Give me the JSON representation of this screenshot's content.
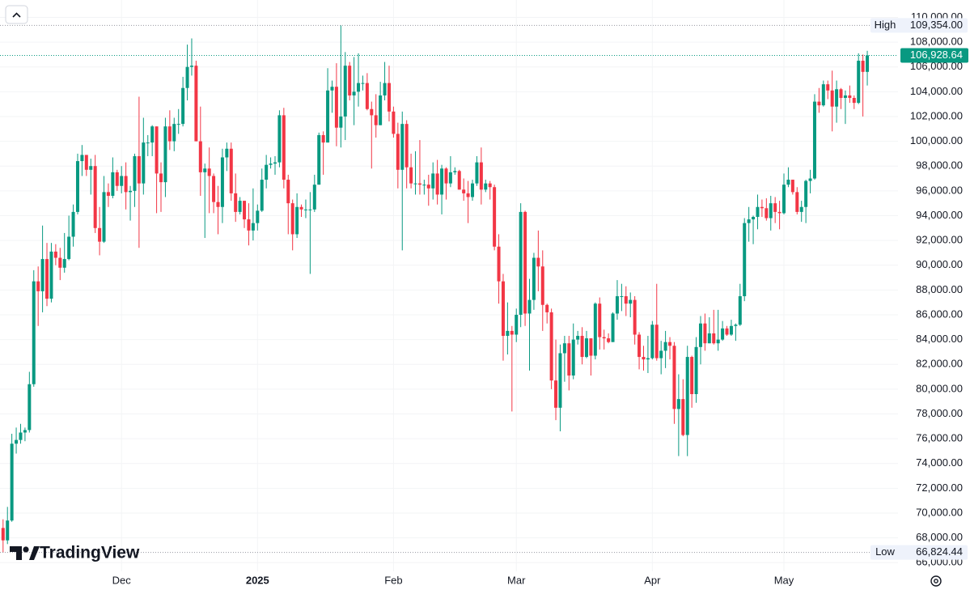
{
  "chart_data": {
    "type": "candlestick",
    "up_color": "#089981",
    "down_color": "#f23645",
    "xlim": [
      -0.7,
      204
    ],
    "ylim": [
      65300,
      111400
    ],
    "grid": true,
    "xticks": [
      {
        "value": 27,
        "label": "Dec"
      },
      {
        "value": 58,
        "label": "2025"
      },
      {
        "value": 89,
        "label": "Feb"
      },
      {
        "value": 117,
        "label": "Mar"
      },
      {
        "value": 148,
        "label": "Apr"
      },
      {
        "value": 178,
        "label": "May"
      }
    ],
    "yticks": [
      {
        "value": 110000,
        "label": "110,000.00"
      },
      {
        "value": 108000,
        "label": "108,000.00"
      },
      {
        "value": 106000,
        "label": "106,000.00"
      },
      {
        "value": 104000,
        "label": "104,000.00"
      },
      {
        "value": 102000,
        "label": "102,000.00"
      },
      {
        "value": 100000,
        "label": "100,000.00"
      },
      {
        "value": 98000,
        "label": "98,000.00"
      },
      {
        "value": 96000,
        "label": "96,000.00"
      },
      {
        "value": 94000,
        "label": "94,000.00"
      },
      {
        "value": 92000,
        "label": "92,000.00"
      },
      {
        "value": 90000,
        "label": "90,000.00"
      },
      {
        "value": 88000,
        "label": "88,000.00"
      },
      {
        "value": 86000,
        "label": "86,000.00"
      },
      {
        "value": 84000,
        "label": "84,000.00"
      },
      {
        "value": 82000,
        "label": "82,000.00"
      },
      {
        "value": 80000,
        "label": "80,000.00"
      },
      {
        "value": 78000,
        "label": "78,000.00"
      },
      {
        "value": 76000,
        "label": "76,000.00"
      },
      {
        "value": 74000,
        "label": "74,000.00"
      },
      {
        "value": 72000,
        "label": "72,000.00"
      },
      {
        "value": 70000,
        "label": "70,000.00"
      },
      {
        "value": 68000,
        "label": "68,000.00"
      },
      {
        "value": 66000,
        "label": "66,000.00"
      }
    ],
    "high": {
      "label": "High",
      "value": 109354,
      "value_label": "109,354.00"
    },
    "low": {
      "label": "Low",
      "value": 66824.44,
      "value_label": "66,824.44"
    },
    "last": {
      "value": 106928.64,
      "value_label": "106,928.64"
    },
    "watermark": "TradingView",
    "ohlc": [
      [
        68800,
        69500,
        66824.44,
        67800
      ],
      [
        67800,
        70500,
        67500,
        69400
      ],
      [
        69400,
        76400,
        69300,
        75600
      ],
      [
        75600,
        76900,
        74800,
        75900
      ],
      [
        75900,
        77200,
        75600,
        76500
      ],
      [
        76500,
        76900,
        75800,
        76700
      ],
      [
        76700,
        81400,
        76500,
        80400
      ],
      [
        80400,
        89600,
        80200,
        88700
      ],
      [
        88700,
        89900,
        85100,
        87900
      ],
      [
        87900,
        93200,
        86200,
        90500
      ],
      [
        90500,
        91800,
        86700,
        87300
      ],
      [
        87300,
        91800,
        87000,
        91100
      ],
      [
        91100,
        91700,
        90000,
        90600
      ],
      [
        90600,
        91400,
        88800,
        89800
      ],
      [
        89800,
        92600,
        89400,
        90500
      ],
      [
        90500,
        94000,
        90400,
        92300
      ],
      [
        92300,
        94900,
        91500,
        94300
      ],
      [
        94300,
        99000,
        94100,
        98400
      ],
      [
        98400,
        99700,
        97200,
        98900
      ],
      [
        98900,
        98900,
        97200,
        97700
      ],
      [
        97700,
        98600,
        95700,
        98000
      ],
      [
        98000,
        98900,
        92600,
        93000
      ],
      [
        93000,
        94700,
        90800,
        91900
      ],
      [
        91900,
        97200,
        91800,
        95900
      ],
      [
        95900,
        96600,
        94700,
        95600
      ],
      [
        95600,
        98700,
        95400,
        97500
      ],
      [
        97500,
        97700,
        96000,
        96400
      ],
      [
        96400,
        98000,
        95800,
        97200
      ],
      [
        97200,
        98300,
        94500,
        95900
      ],
      [
        95900,
        96400,
        93600,
        96000
      ],
      [
        96000,
        99000,
        94700,
        98800
      ],
      [
        98800,
        103600,
        91400,
        96600
      ],
      [
        96600,
        101900,
        95700,
        99900
      ],
      [
        99900,
        100500,
        98800,
        99900
      ],
      [
        99900,
        101300,
        98800,
        101200
      ],
      [
        101200,
        101200,
        94200,
        97400
      ],
      [
        97400,
        98300,
        94300,
        96700
      ],
      [
        96700,
        101900,
        95500,
        101200
      ],
      [
        101200,
        102500,
        99300,
        100000
      ],
      [
        100000,
        101900,
        99200,
        101400
      ],
      [
        101400,
        102600,
        100600,
        101400
      ],
      [
        101400,
        105200,
        101200,
        104300
      ],
      [
        104300,
        107800,
        103300,
        106000
      ],
      [
        106000,
        108300,
        105300,
        106100
      ],
      [
        106100,
        106500,
        100000,
        100000
      ],
      [
        100000,
        102800,
        95600,
        97500
      ],
      [
        97500,
        98200,
        92200,
        97800
      ],
      [
        97800,
        99500,
        94200,
        97200
      ],
      [
        97200,
        97400,
        94200,
        95100
      ],
      [
        95100,
        96400,
        92500,
        94700
      ],
      [
        94700,
        99400,
        93400,
        98700
      ],
      [
        98700,
        99900,
        97600,
        99400
      ],
      [
        99400,
        99900,
        95200,
        95800
      ],
      [
        95800,
        97400,
        93500,
        94300
      ],
      [
        94300,
        95500,
        94100,
        95200
      ],
      [
        95200,
        95200,
        93000,
        93700
      ],
      [
        93700,
        95000,
        91600,
        92800
      ],
      [
        92800,
        96200,
        92000,
        93400
      ],
      [
        93400,
        94900,
        92800,
        94400
      ],
      [
        94400,
        97800,
        94300,
        96900
      ],
      [
        96900,
        98900,
        96200,
        98100
      ],
      [
        98100,
        98700,
        97800,
        98200
      ],
      [
        98200,
        98800,
        97300,
        98300
      ],
      [
        98300,
        102500,
        97900,
        102100
      ],
      [
        102100,
        102700,
        96200,
        96900
      ],
      [
        96900,
        97300,
        92500,
        95000
      ],
      [
        95000,
        95300,
        91200,
        92500
      ],
      [
        92500,
        95800,
        92200,
        94700
      ],
      [
        94700,
        94900,
        93900,
        94500
      ],
      [
        94500,
        95300,
        93800,
        94500
      ],
      [
        94500,
        95900,
        89300,
        94500
      ],
      [
        94500,
        97300,
        94300,
        96500
      ],
      [
        96500,
        100700,
        96500,
        100500
      ],
      [
        100500,
        100800,
        97300,
        99900
      ],
      [
        99900,
        105900,
        99900,
        104100
      ],
      [
        104100,
        104900,
        102300,
        104400
      ],
      [
        104400,
        106300,
        99600,
        101100
      ],
      [
        101100,
        109354,
        99500,
        102000
      ],
      [
        102000,
        107200,
        100100,
        106100
      ],
      [
        106100,
        106400,
        103300,
        103700
      ],
      [
        103700,
        106800,
        101300,
        104000
      ],
      [
        104000,
        107100,
        102800,
        104700
      ],
      [
        104700,
        105300,
        104100,
        104700
      ],
      [
        104700,
        105500,
        102500,
        102600
      ],
      [
        102600,
        103200,
        97800,
        102100
      ],
      [
        102100,
        103800,
        100300,
        101300
      ],
      [
        101300,
        104800,
        101300,
        103700
      ],
      [
        103700,
        106400,
        103300,
        104700
      ],
      [
        104700,
        106100,
        101600,
        102400
      ],
      [
        102400,
        102800,
        100300,
        100600
      ],
      [
        100600,
        101500,
        96200,
        97700
      ],
      [
        97700,
        102400,
        91200,
        101400
      ],
      [
        101400,
        101700,
        96200,
        97900
      ],
      [
        97900,
        99000,
        96200,
        96600
      ],
      [
        96600,
        99200,
        95700,
        96600
      ],
      [
        96600,
        100100,
        95700,
        96500
      ],
      [
        96500,
        96900,
        95700,
        96500
      ],
      [
        96500,
        97300,
        94800,
        96200
      ],
      [
        96200,
        98300,
        95300,
        97400
      ],
      [
        97400,
        98500,
        94900,
        95700
      ],
      [
        95700,
        98100,
        94100,
        97800
      ],
      [
        97800,
        97900,
        95300,
        96600
      ],
      [
        96600,
        98800,
        96300,
        97500
      ],
      [
        97500,
        97900,
        97300,
        97600
      ],
      [
        97600,
        97700,
        96100,
        96100
      ],
      [
        96100,
        97000,
        95200,
        95800
      ],
      [
        95800,
        96800,
        93400,
        95500
      ],
      [
        95500,
        96900,
        95200,
        96600
      ],
      [
        96600,
        98800,
        96400,
        98300
      ],
      [
        98300,
        99500,
        94900,
        96100
      ],
      [
        96100,
        96900,
        95900,
        96600
      ],
      [
        96600,
        96800,
        95300,
        96300
      ],
      [
        96300,
        96500,
        91200,
        91500
      ],
      [
        91500,
        92500,
        86900,
        88700
      ],
      [
        88700,
        89300,
        82300,
        84300
      ],
      [
        84300,
        87000,
        82800,
        84700
      ],
      [
        84700,
        85100,
        78200,
        84400
      ],
      [
        84400,
        86500,
        83800,
        86000
      ],
      [
        86000,
        95000,
        85000,
        94300
      ],
      [
        94300,
        94400,
        85100,
        86100
      ],
      [
        86100,
        88900,
        81500,
        87200
      ],
      [
        87200,
        91000,
        86400,
        90600
      ],
      [
        90600,
        92800,
        87900,
        89900
      ],
      [
        89900,
        91200,
        84700,
        86800
      ],
      [
        86800,
        86900,
        85300,
        86200
      ],
      [
        86200,
        86500,
        80000,
        80700
      ],
      [
        80700,
        84000,
        77500,
        78500
      ],
      [
        78500,
        83600,
        76600,
        82900
      ],
      [
        82900,
        84300,
        80600,
        83700
      ],
      [
        83700,
        84300,
        79900,
        81100
      ],
      [
        81100,
        85300,
        80800,
        84000
      ],
      [
        84000,
        84700,
        83600,
        84300
      ],
      [
        84300,
        85000,
        82000,
        82600
      ],
      [
        82600,
        84700,
        82500,
        84100
      ],
      [
        84100,
        84100,
        81100,
        82700
      ],
      [
        82700,
        87000,
        82400,
        86900
      ],
      [
        86900,
        87400,
        83200,
        84200
      ],
      [
        84200,
        84800,
        83200,
        84100
      ],
      [
        84100,
        84500,
        83700,
        83800
      ],
      [
        83800,
        86200,
        83800,
        86100
      ],
      [
        86100,
        88800,
        85600,
        87500
      ],
      [
        87500,
        88500,
        86300,
        87500
      ],
      [
        87500,
        88300,
        85900,
        86900
      ],
      [
        86900,
        87800,
        85800,
        87200
      ],
      [
        87200,
        87500,
        83600,
        84400
      ],
      [
        84400,
        84600,
        81600,
        82600
      ],
      [
        82600,
        83500,
        81500,
        82400
      ],
      [
        82400,
        84300,
        81300,
        82500
      ],
      [
        82500,
        85500,
        82400,
        85200
      ],
      [
        85200,
        88500,
        82300,
        82500
      ],
      [
        82500,
        83900,
        81200,
        83100
      ],
      [
        83100,
        84700,
        81700,
        83800
      ],
      [
        83800,
        84200,
        82400,
        83500
      ],
      [
        83500,
        83800,
        77200,
        78400
      ],
      [
        78400,
        81200,
        74600,
        79200
      ],
      [
        79200,
        80800,
        76200,
        76300
      ],
      [
        76300,
        83500,
        74600,
        82600
      ],
      [
        82600,
        82700,
        78500,
        79600
      ],
      [
        79600,
        84200,
        78900,
        83400
      ],
      [
        83400,
        85900,
        82000,
        85300
      ],
      [
        85300,
        86100,
        83100,
        83700
      ],
      [
        83700,
        85800,
        83700,
        84500
      ],
      [
        84500,
        86400,
        83600,
        83700
      ],
      [
        83700,
        86400,
        83100,
        84000
      ],
      [
        84000,
        85500,
        83900,
        84900
      ],
      [
        84900,
        85100,
        84300,
        84400
      ],
      [
        84400,
        85600,
        84300,
        85100
      ],
      [
        85100,
        85300,
        83900,
        85200
      ],
      [
        85200,
        88500,
        85100,
        87500
      ],
      [
        87500,
        93800,
        87100,
        93400
      ],
      [
        93400,
        94700,
        91900,
        93700
      ],
      [
        93700,
        94000,
        91700,
        93900
      ],
      [
        93900,
        95700,
        92900,
        94700
      ],
      [
        94700,
        95300,
        93900,
        94600
      ],
      [
        94600,
        95400,
        93600,
        93800
      ],
      [
        93800,
        95600,
        92800,
        95000
      ],
      [
        95000,
        95500,
        93400,
        94300
      ],
      [
        94300,
        95200,
        92900,
        94200
      ],
      [
        94200,
        97400,
        94100,
        96500
      ],
      [
        96500,
        97900,
        96300,
        96900
      ],
      [
        96900,
        96900,
        95700,
        95900
      ],
      [
        95900,
        96300,
        94100,
        94300
      ],
      [
        94300,
        95200,
        93500,
        94700
      ],
      [
        94700,
        96900,
        93400,
        96800
      ],
      [
        96800,
        97700,
        95800,
        97000
      ],
      [
        97000,
        103800,
        96900,
        103200
      ],
      [
        103200,
        104300,
        102300,
        102900
      ],
      [
        102900,
        104900,
        102800,
        104600
      ],
      [
        104600,
        104900,
        103400,
        104100
      ],
      [
        104100,
        105700,
        100800,
        102800
      ],
      [
        102800,
        104900,
        101500,
        104200
      ],
      [
        104200,
        104300,
        102600,
        103500
      ],
      [
        103500,
        104100,
        101400,
        103700
      ],
      [
        103700,
        104500,
        103100,
        103500
      ],
      [
        103500,
        103700,
        102600,
        103100
      ],
      [
        103100,
        107100,
        103000,
        106500
      ],
      [
        106500,
        107000,
        102000,
        105600
      ],
      [
        105600,
        107300,
        104500,
        106928.64
      ]
    ]
  }
}
